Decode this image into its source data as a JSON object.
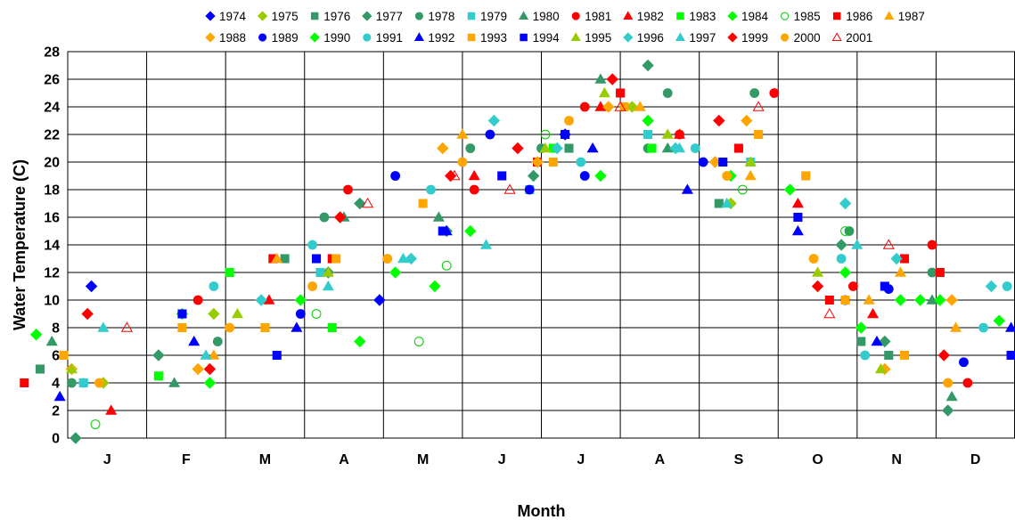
{
  "chart_data": {
    "type": "scatter",
    "title": "",
    "xlabel": "Month",
    "ylabel": "Water Temperature (C)",
    "xlim": [
      0,
      12
    ],
    "ylim": [
      0,
      28
    ],
    "yticks": [
      0,
      2,
      4,
      6,
      8,
      10,
      12,
      14,
      16,
      18,
      20,
      22,
      24,
      26,
      28
    ],
    "categories": [
      "J",
      "F",
      "M",
      "A",
      "M",
      "J",
      "J",
      "A",
      "S",
      "O",
      "N",
      "D"
    ],
    "grid": true,
    "legend_position": "top",
    "series": [
      {
        "name": "1974",
        "marker": "diamond",
        "color": "#0000FF",
        "fill": true,
        "points": [
          [
            0.3,
            11
          ],
          [
            3.95,
            10
          ],
          [
            6.3,
            22
          ]
        ]
      },
      {
        "name": "1975",
        "marker": "diamond",
        "color": "#99CC00",
        "fill": true,
        "points": [
          [
            0.45,
            4
          ],
          [
            1.85,
            9
          ],
          [
            3.3,
            12
          ],
          [
            7.15,
            24
          ],
          [
            8.4,
            17
          ]
        ]
      },
      {
        "name": "1976",
        "marker": "square",
        "color": "#339966",
        "fill": true,
        "points": [
          [
            -0.35,
            5
          ],
          [
            2.75,
            13
          ],
          [
            6.35,
            21
          ],
          [
            8.25,
            17
          ],
          [
            10.05,
            7
          ],
          [
            10.4,
            6
          ]
        ]
      },
      {
        "name": "1977",
        "marker": "diamond",
        "color": "#339966",
        "fill": true,
        "points": [
          [
            0.1,
            0
          ],
          [
            1.15,
            6
          ],
          [
            3.3,
            12
          ],
          [
            3.7,
            17
          ],
          [
            4.8,
            15
          ],
          [
            5.9,
            19
          ],
          [
            7.35,
            27
          ],
          [
            9.8,
            14
          ],
          [
            10.35,
            7
          ],
          [
            11.15,
            2
          ]
        ]
      },
      {
        "name": "1978",
        "marker": "circle",
        "color": "#339966",
        "fill": true,
        "points": [
          [
            0.05,
            4
          ],
          [
            1.9,
            7
          ],
          [
            3.25,
            16
          ],
          [
            5.1,
            21
          ],
          [
            6.0,
            21
          ],
          [
            7.35,
            21
          ],
          [
            7.6,
            25
          ],
          [
            8.7,
            25
          ],
          [
            9.9,
            15
          ],
          [
            10.95,
            12
          ]
        ]
      },
      {
        "name": "1979",
        "marker": "square",
        "color": "#33CCCC",
        "fill": true,
        "points": [
          [
            0.2,
            4
          ],
          [
            3.2,
            12
          ],
          [
            5.85,
            18
          ],
          [
            7.35,
            22
          ],
          [
            8.65,
            20
          ]
        ]
      },
      {
        "name": "1980",
        "marker": "triangle",
        "color": "#339966",
        "fill": true,
        "points": [
          [
            -0.2,
            7
          ],
          [
            1.35,
            4
          ],
          [
            3.5,
            16
          ],
          [
            4.7,
            16
          ],
          [
            6.75,
            26
          ],
          [
            7.6,
            21
          ],
          [
            10.95,
            10
          ],
          [
            11.2,
            3
          ]
        ]
      },
      {
        "name": "1981",
        "marker": "circle",
        "color": "#FF0000",
        "fill": true,
        "points": [
          [
            1.65,
            10
          ],
          [
            3.55,
            18
          ],
          [
            5.15,
            18
          ],
          [
            6.55,
            24
          ],
          [
            7.75,
            22
          ],
          [
            8.95,
            25
          ],
          [
            9.95,
            11
          ],
          [
            10.95,
            14
          ],
          [
            11.4,
            4
          ]
        ]
      },
      {
        "name": "1982",
        "marker": "triangle",
        "color": "#FF0000",
        "fill": true,
        "points": [
          [
            0.55,
            2
          ],
          [
            2.55,
            10
          ],
          [
            5.15,
            19
          ],
          [
            6.75,
            24
          ],
          [
            7.75,
            22
          ],
          [
            9.25,
            17
          ],
          [
            10.2,
            9
          ]
        ]
      },
      {
        "name": "1983",
        "marker": "square",
        "color": "#00FF00",
        "fill": true,
        "points": [
          [
            1.15,
            4.5
          ],
          [
            2.05,
            12
          ],
          [
            3.35,
            8
          ],
          [
            6.15,
            21
          ],
          [
            7.4,
            21
          ]
        ]
      },
      {
        "name": "1984",
        "marker": "diamond",
        "color": "#00FF00",
        "fill": true,
        "points": [
          [
            -0.4,
            7.5
          ],
          [
            1.45,
            9
          ],
          [
            3.7,
            7
          ],
          [
            4.65,
            11
          ],
          [
            6.75,
            19
          ],
          [
            9.15,
            18
          ],
          [
            10.05,
            8
          ],
          [
            10.55,
            10
          ],
          [
            11.05,
            10
          ]
        ]
      },
      {
        "name": "1985",
        "marker": "circle",
        "color": "#00CC00",
        "fill": false,
        "points": [
          [
            0.35,
            1
          ],
          [
            3.15,
            9
          ],
          [
            4.45,
            7
          ],
          [
            4.8,
            12.5
          ],
          [
            6.05,
            22
          ],
          [
            8.55,
            18
          ],
          [
            9.85,
            15
          ]
        ]
      },
      {
        "name": "1986",
        "marker": "square",
        "color": "#FF0000",
        "fill": true,
        "points": [
          [
            -0.55,
            4
          ],
          [
            2.6,
            13
          ],
          [
            3.35,
            13
          ],
          [
            5.95,
            20
          ],
          [
            7.0,
            25
          ],
          [
            8.5,
            21
          ],
          [
            9.65,
            10
          ],
          [
            10.6,
            13
          ],
          [
            11.05,
            12
          ]
        ]
      },
      {
        "name": "1987",
        "marker": "triangle",
        "color": "#FFA500",
        "fill": true,
        "points": [
          [
            1.85,
            6
          ],
          [
            2.65,
            13
          ],
          [
            5.0,
            22
          ],
          [
            7.25,
            24
          ],
          [
            8.65,
            19
          ],
          [
            10.15,
            10
          ],
          [
            10.55,
            12
          ],
          [
            11.25,
            8
          ]
        ]
      },
      {
        "name": "1988",
        "marker": "diamond",
        "color": "#FFA500",
        "fill": true,
        "points": [
          [
            0.05,
            5
          ],
          [
            1.65,
            5
          ],
          [
            4.75,
            21
          ],
          [
            5.95,
            20
          ],
          [
            6.85,
            24
          ],
          [
            8.2,
            20
          ],
          [
            8.6,
            23
          ],
          [
            10.35,
            5
          ],
          [
            11.2,
            10
          ]
        ]
      },
      {
        "name": "1989",
        "marker": "circle",
        "color": "#0000FF",
        "fill": true,
        "points": [
          [
            2.95,
            9
          ],
          [
            4.15,
            19
          ],
          [
            5.35,
            22
          ],
          [
            5.85,
            18
          ],
          [
            6.55,
            19
          ],
          [
            8.05,
            20
          ],
          [
            9.85,
            10
          ],
          [
            10.4,
            10.8
          ],
          [
            11.35,
            5.5
          ]
        ]
      },
      {
        "name": "1990",
        "marker": "diamond",
        "color": "#00FF00",
        "fill": true,
        "points": [
          [
            1.8,
            4
          ],
          [
            2.95,
            10
          ],
          [
            4.15,
            12
          ],
          [
            5.1,
            15
          ],
          [
            7.35,
            23
          ],
          [
            8.4,
            19
          ],
          [
            9.85,
            12
          ],
          [
            10.8,
            10
          ],
          [
            11.8,
            8.5
          ]
        ]
      },
      {
        "name": "1991",
        "marker": "circle",
        "color": "#33CCCC",
        "fill": true,
        "points": [
          [
            0.2,
            4
          ],
          [
            1.85,
            11
          ],
          [
            3.1,
            14
          ],
          [
            4.6,
            18
          ],
          [
            6.5,
            20
          ],
          [
            7.95,
            21
          ],
          [
            9.8,
            13
          ],
          [
            10.1,
            6
          ],
          [
            11.6,
            8
          ],
          [
            11.9,
            11
          ]
        ]
      },
      {
        "name": "1992",
        "marker": "triangle",
        "color": "#0000FF",
        "fill": true,
        "points": [
          [
            -0.1,
            3
          ],
          [
            1.6,
            7
          ],
          [
            2.9,
            8
          ],
          [
            4.8,
            15
          ],
          [
            6.65,
            21
          ],
          [
            7.85,
            18
          ],
          [
            9.25,
            15
          ],
          [
            10.25,
            7
          ],
          [
            11.95,
            8
          ]
        ]
      },
      {
        "name": "1993",
        "marker": "square",
        "color": "#FFA500",
        "fill": true,
        "points": [
          [
            -0.05,
            6
          ],
          [
            1.45,
            8
          ],
          [
            2.5,
            8
          ],
          [
            3.4,
            13
          ],
          [
            4.5,
            17
          ],
          [
            6.15,
            20
          ],
          [
            7.05,
            24
          ],
          [
            8.75,
            22
          ],
          [
            9.35,
            19
          ],
          [
            9.85,
            10
          ],
          [
            10.6,
            6
          ]
        ]
      },
      {
        "name": "1994",
        "marker": "square",
        "color": "#0000FF",
        "fill": true,
        "points": [
          [
            1.45,
            9
          ],
          [
            2.65,
            6
          ],
          [
            3.15,
            13
          ],
          [
            4.75,
            15
          ],
          [
            5.5,
            19
          ],
          [
            6.3,
            22
          ],
          [
            8.3,
            20
          ],
          [
            9.25,
            16
          ],
          [
            10.35,
            11
          ],
          [
            11.95,
            6
          ]
        ]
      },
      {
        "name": "1995",
        "marker": "triangle",
        "color": "#99CC00",
        "fill": true,
        "points": [
          [
            0.05,
            5
          ],
          [
            2.15,
            9
          ],
          [
            3.3,
            12
          ],
          [
            6.05,
            21
          ],
          [
            6.8,
            25
          ],
          [
            7.6,
            22
          ],
          [
            8.65,
            20
          ],
          [
            9.5,
            12
          ],
          [
            10.3,
            5
          ]
        ]
      },
      {
        "name": "1996",
        "marker": "diamond",
        "color": "#33CCCC",
        "fill": true,
        "points": [
          [
            2.45,
            10
          ],
          [
            4.35,
            13
          ],
          [
            5.4,
            23
          ],
          [
            6.2,
            21
          ],
          [
            7.7,
            21
          ],
          [
            9.85,
            17
          ],
          [
            10.5,
            13
          ],
          [
            11.7,
            11
          ]
        ]
      },
      {
        "name": "1997",
        "marker": "triangle",
        "color": "#33CCCC",
        "fill": true,
        "points": [
          [
            0.45,
            8
          ],
          [
            1.75,
            6
          ],
          [
            3.3,
            11
          ],
          [
            4.25,
            13
          ],
          [
            5.3,
            14
          ],
          [
            7.75,
            21
          ],
          [
            8.35,
            17
          ],
          [
            10.0,
            14
          ]
        ]
      },
      {
        "name": "1999",
        "marker": "diamond",
        "color": "#FF0000",
        "fill": true,
        "points": [
          [
            0.25,
            9
          ],
          [
            1.8,
            5
          ],
          [
            3.45,
            16
          ],
          [
            4.85,
            19
          ],
          [
            5.7,
            21
          ],
          [
            6.9,
            26
          ],
          [
            8.25,
            23
          ],
          [
            9.5,
            11
          ],
          [
            11.1,
            6
          ]
        ]
      },
      {
        "name": "2000",
        "marker": "circle",
        "color": "#FFA500",
        "fill": true,
        "points": [
          [
            0.4,
            4
          ],
          [
            2.05,
            8
          ],
          [
            3.1,
            11
          ],
          [
            4.05,
            13
          ],
          [
            5.0,
            20
          ],
          [
            6.35,
            23
          ],
          [
            8.35,
            19
          ],
          [
            9.45,
            13
          ],
          [
            11.15,
            4
          ]
        ]
      },
      {
        "name": "2001",
        "marker": "triangle",
        "color": "#FF0000",
        "fill": false,
        "points": [
          [
            0.75,
            8
          ],
          [
            3.8,
            17
          ],
          [
            4.9,
            19
          ],
          [
            5.6,
            18
          ],
          [
            7.0,
            24
          ],
          [
            8.75,
            24
          ],
          [
            9.65,
            9
          ],
          [
            10.4,
            14
          ]
        ]
      }
    ]
  }
}
